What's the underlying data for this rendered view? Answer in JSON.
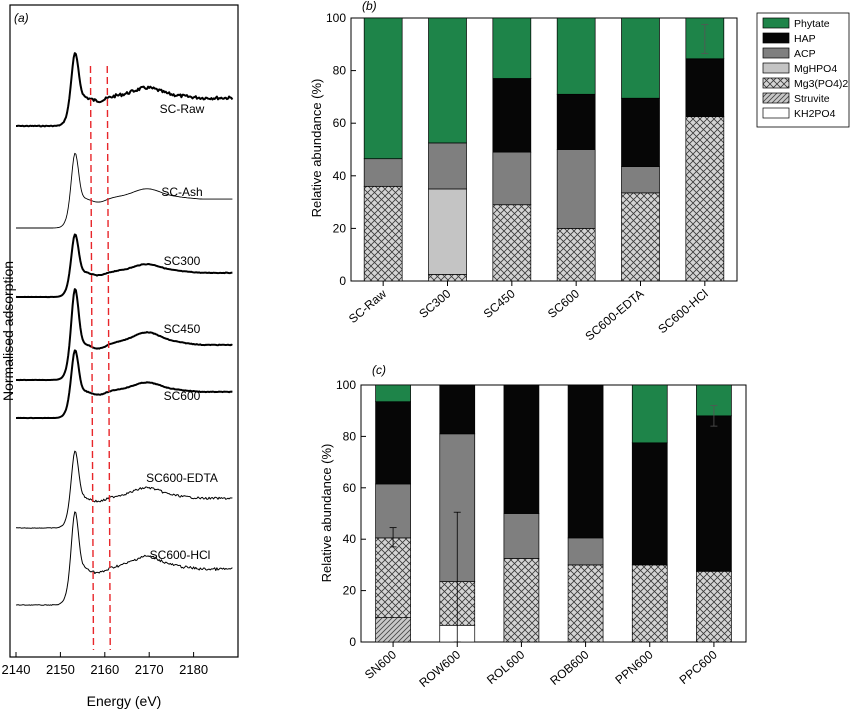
{
  "chart_data": [
    {
      "panel": "(a)",
      "type": "line",
      "xlabel": "Energy (eV)",
      "ylabel": "Normalised adsorption",
      "xlim": [
        2140,
        2190
      ],
      "xticks": [
        2140,
        2150,
        2160,
        2170,
        2180
      ],
      "reference_lines_eV": [
        2157,
        2161
      ],
      "reference_line_color": "#e8262a",
      "series": [
        {
          "name": "SC-Raw",
          "style": "thick-noisy"
        },
        {
          "name": "SC-Ash",
          "style": "thin"
        },
        {
          "name": "SC300",
          "style": "thick"
        },
        {
          "name": "SC450",
          "style": "thick"
        },
        {
          "name": "SC600",
          "style": "thick"
        },
        {
          "name": "SC600-EDTA",
          "style": "thin-noisy"
        },
        {
          "name": "SC600-HCl",
          "style": "thin-noisy"
        }
      ]
    },
    {
      "panel": "(b)",
      "type": "bar",
      "stacked": true,
      "ylabel": "Relative abundance (%)",
      "ylim": [
        0,
        100
      ],
      "yticks": [
        0,
        20,
        40,
        60,
        80,
        100
      ],
      "categories": [
        "SC-Raw",
        "SC300",
        "SC450",
        "SC600",
        "SC600-EDTA",
        "SC600-HCl"
      ],
      "series": [
        {
          "name": "KH2PO4",
          "values": [
            0,
            0,
            0,
            0,
            0,
            0
          ]
        },
        {
          "name": "Struvite",
          "values": [
            0,
            0,
            0,
            0,
            0,
            0
          ]
        },
        {
          "name": "Mg3(PO4)2",
          "values": [
            36,
            2.5,
            29,
            20,
            33.5,
            62.5
          ]
        },
        {
          "name": "MgHPO4",
          "values": [
            0,
            32.5,
            0,
            0,
            0,
            0
          ]
        },
        {
          "name": "ACP",
          "values": [
            10.5,
            17.5,
            20,
            30,
            10,
            0
          ]
        },
        {
          "name": "HAP",
          "values": [
            0,
            0,
            28,
            21,
            26,
            22
          ]
        },
        {
          "name": "Phytate",
          "values": [
            53.5,
            47.5,
            23,
            29,
            30.5,
            15.5
          ]
        }
      ],
      "error_bars": [
        {
          "category": "SC600-HCl",
          "center": 92,
          "low": 86.5,
          "high": 97.5
        }
      ]
    },
    {
      "panel": "(c)",
      "type": "bar",
      "stacked": true,
      "ylabel": "Relative abundance (%)",
      "ylim": [
        0,
        100
      ],
      "yticks": [
        0,
        20,
        40,
        60,
        80,
        100
      ],
      "categories": [
        "SN600",
        "ROW600",
        "ROL600",
        "ROB600",
        "PPN600",
        "PPC600"
      ],
      "series": [
        {
          "name": "KH2PO4",
          "values": [
            0,
            6.5,
            0,
            0,
            0,
            0
          ]
        },
        {
          "name": "Struvite",
          "values": [
            9.5,
            0,
            0,
            0,
            0,
            0
          ]
        },
        {
          "name": "Mg3(PO4)2",
          "values": [
            31,
            17,
            32.5,
            30,
            30,
            27.5
          ]
        },
        {
          "name": "MgHPO4",
          "values": [
            0,
            0,
            0,
            0,
            0,
            0
          ]
        },
        {
          "name": "ACP",
          "values": [
            21,
            57.5,
            17.5,
            10.5,
            0,
            0
          ]
        },
        {
          "name": "HAP",
          "values": [
            32,
            19,
            50,
            59.5,
            47.5,
            60.5
          ]
        },
        {
          "name": "Phytate",
          "values": [
            6.5,
            0,
            0,
            0,
            22.5,
            12
          ]
        }
      ],
      "error_bars": [
        {
          "category": "SN600",
          "center": 41,
          "low": 37,
          "high": 44.5
        },
        {
          "category": "ROW600",
          "center": 23,
          "low": 0,
          "high": 50.5
        },
        {
          "category": "PPC600",
          "center": 88,
          "low": 84,
          "high": 92
        }
      ]
    }
  ],
  "legend": {
    "placement": "top-right",
    "items": [
      {
        "name": "Phytate",
        "fill": "green"
      },
      {
        "name": "HAP",
        "fill": "black"
      },
      {
        "name": "ACP",
        "fill": "darkgray"
      },
      {
        "name": "MgHPO4",
        "fill": "lightgray"
      },
      {
        "name": "Mg3(PO4)2",
        "fill": "crosshatch"
      },
      {
        "name": "Struvite",
        "fill": "diagonal"
      },
      {
        "name": "KH2PO4",
        "fill": "white"
      }
    ]
  },
  "colors": {
    "Phytate": "#1e8449",
    "HAP": "#060606",
    "ACP": "#7f7f7f",
    "MgHPO4": "#c4c4c4",
    "Mg3(PO4)2": "#d0d0d0",
    "Struvite": "#c8c8c8",
    "KH2PO4": "#ffffff"
  }
}
